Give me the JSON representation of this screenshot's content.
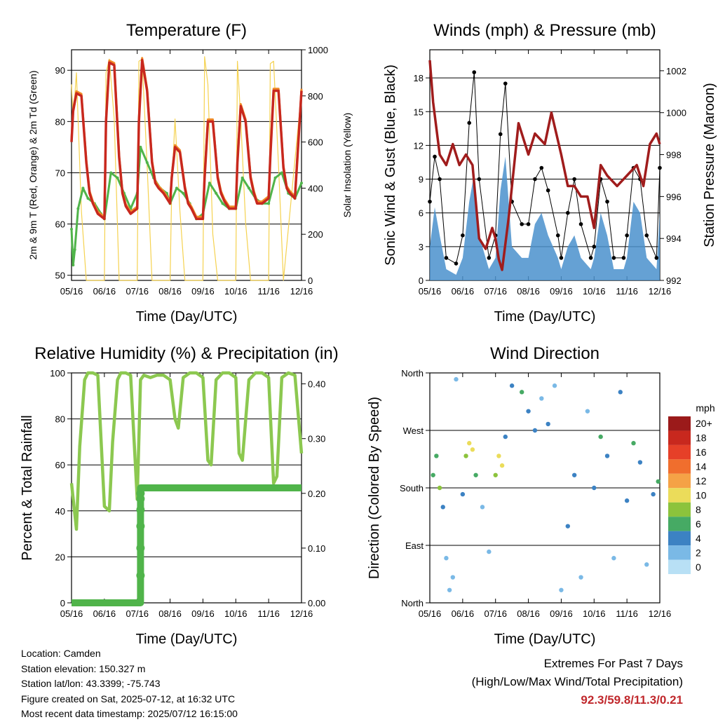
{
  "chart_data": [
    {
      "type": "line",
      "title": "Temperature (F)",
      "xlabel": "Time (Day/UTC)",
      "ylabel": "2m & 9m T (Red, Orange) & 2m Td (Green)",
      "y2label": "Solar Insolation (Yellow)",
      "x_ticks": [
        "05/16",
        "06/16",
        "07/16",
        "08/16",
        "09/16",
        "10/16",
        "11/16",
        "12/16"
      ],
      "ylim": [
        49,
        94
      ],
      "y_ticks": [
        50,
        60,
        70,
        80,
        90
      ],
      "y2lim": [
        0,
        1000
      ],
      "y2_ticks": [
        0,
        200,
        400,
        600,
        800,
        1000
      ],
      "grid": true,
      "colors": {
        "t2m": "#c8281e",
        "t9m": "#f08c28",
        "td": "#50b44a",
        "solar": "#f5d250"
      },
      "series": [
        {
          "key": "t2m",
          "x": [
            0,
            0.05,
            0.15,
            0.3,
            0.45,
            0.55,
            0.65,
            0.8,
            1,
            1.05,
            1.15,
            1.3,
            1.45,
            1.55,
            1.65,
            1.8,
            2,
            2.05,
            2.15,
            2.3,
            2.45,
            2.55,
            2.65,
            2.8,
            3,
            3.05,
            3.15,
            3.3,
            3.45,
            3.55,
            3.65,
            3.8,
            4,
            4.05,
            4.15,
            4.3,
            4.45,
            4.55,
            4.65,
            4.8,
            5,
            5.05,
            5.15,
            5.3,
            5.45,
            5.55,
            5.65,
            5.8,
            6,
            6.05,
            6.15,
            6.3,
            6.45,
            6.55,
            6.65,
            6.8,
            7
          ],
          "y": [
            76,
            82,
            85.5,
            85,
            72,
            66,
            64,
            62,
            61,
            80,
            91.5,
            91,
            73,
            66,
            63.5,
            62,
            63,
            80,
            92,
            86,
            72,
            68,
            67,
            66,
            64,
            69,
            75,
            74,
            67,
            64,
            63,
            61,
            61,
            69,
            80,
            80,
            69,
            66,
            64.5,
            63,
            63,
            72,
            83,
            80,
            69,
            66,
            64,
            64,
            65,
            73,
            86,
            86,
            71,
            67,
            66,
            65,
            86
          ]
        },
        {
          "key": "td",
          "x": [
            0,
            0.05,
            0.1,
            0.2,
            0.35,
            0.5,
            0.7,
            0.9,
            1,
            1.2,
            1.4,
            1.6,
            1.8,
            2,
            2.1,
            2.3,
            2.5,
            2.7,
            2.9,
            3,
            3.2,
            3.4,
            3.6,
            3.8,
            4,
            4.2,
            4.4,
            4.6,
            4.8,
            5,
            5.2,
            5.4,
            5.6,
            5.8,
            6,
            6.2,
            6.4,
            6.6,
            6.8,
            7
          ],
          "y": [
            59,
            52,
            55,
            63,
            67,
            65,
            64,
            62,
            61,
            70,
            69,
            66,
            63,
            66,
            75,
            72,
            69,
            67,
            66,
            64,
            67,
            66,
            64,
            61,
            62,
            68,
            66,
            64,
            63,
            63,
            69,
            67,
            65,
            64,
            64,
            69,
            70,
            66,
            65,
            68
          ]
        },
        {
          "key": "solar",
          "x": [
            0,
            0.05,
            0.15,
            0.3,
            0.45,
            1,
            1.05,
            1.15,
            1.3,
            1.45,
            2,
            2.05,
            2.15,
            2.3,
            2.45,
            3,
            3.05,
            3.15,
            3.3,
            3.45,
            4,
            4.05,
            4.15,
            4.3,
            4.45,
            5,
            5.05,
            5.15,
            5.3,
            5.45,
            6,
            6.05,
            6.15,
            6.3,
            6.45,
            7
          ],
          "y": [
            850,
            700,
            900,
            300,
            0,
            0,
            900,
            960,
            700,
            0,
            0,
            950,
            960,
            500,
            0,
            0,
            400,
            700,
            300,
            0,
            0,
            970,
            850,
            200,
            0,
            0,
            950,
            700,
            250,
            0,
            0,
            940,
            950,
            500,
            0,
            820
          ]
        }
      ]
    },
    {
      "type": "line",
      "title": "Winds (mph) & Pressure (mb)",
      "xlabel": "Time (Day/UTC)",
      "ylabel": "Sonic Wind & Gust (Blue, Black)",
      "y2label": "Station Pressure (Maroon)",
      "x_ticks": [
        "05/16",
        "06/16",
        "07/16",
        "08/16",
        "09/16",
        "10/16",
        "11/16",
        "12/16"
      ],
      "ylim": [
        0,
        20.5
      ],
      "y_ticks": [
        0,
        3,
        6,
        9,
        12,
        15,
        18
      ],
      "y2lim": [
        992,
        1003
      ],
      "y2_ticks": [
        992,
        994,
        996,
        998,
        1000,
        1002
      ],
      "grid": true,
      "colors": {
        "wind": "#4a90cc",
        "gust": "#000000",
        "pressure": "#a01c1c"
      },
      "series": [
        {
          "key": "wind",
          "x": [
            0,
            0.15,
            0.3,
            0.5,
            0.8,
            1,
            1.2,
            1.35,
            1.5,
            1.8,
            2,
            2.15,
            2.3,
            2.5,
            2.8,
            3,
            3.2,
            3.4,
            3.6,
            3.9,
            4,
            4.2,
            4.4,
            4.6,
            4.9,
            5,
            5.2,
            5.4,
            5.6,
            5.9,
            6,
            6.2,
            6.4,
            6.6,
            6.9,
            7
          ],
          "y": [
            3,
            6.5,
            4,
            1,
            0.5,
            2,
            7,
            9.5,
            4,
            1,
            2,
            8,
            11,
            3,
            2,
            2,
            5,
            6,
            4,
            2,
            1,
            3,
            4,
            2,
            1,
            2,
            6,
            4,
            1,
            1,
            2,
            7,
            6,
            2,
            1,
            6
          ]
        },
        {
          "key": "gust",
          "x": [
            0,
            0.15,
            0.3,
            0.5,
            0.8,
            1,
            1.2,
            1.35,
            1.5,
            1.8,
            2,
            2.15,
            2.3,
            2.5,
            2.8,
            3,
            3.2,
            3.4,
            3.6,
            3.9,
            4,
            4.2,
            4.4,
            4.6,
            4.9,
            5,
            5.2,
            5.4,
            5.6,
            5.9,
            6,
            6.2,
            6.4,
            6.6,
            6.9,
            7
          ],
          "y": [
            7,
            11,
            9,
            2,
            1.5,
            4,
            14,
            18.5,
            9,
            2,
            4,
            13,
            17.5,
            7,
            5,
            5,
            9,
            10,
            8,
            4,
            2,
            6,
            9,
            5,
            2,
            3,
            9,
            7,
            2,
            2,
            4,
            10,
            9,
            4,
            2,
            10
          ]
        },
        {
          "key": "pressure",
          "x": [
            0,
            0.1,
            0.3,
            0.5,
            0.7,
            0.9,
            1.1,
            1.3,
            1.5,
            1.7,
            1.9,
            2,
            2.1,
            2.2,
            2.4,
            2.7,
            3,
            3.2,
            3.5,
            3.7,
            4,
            4.2,
            4.4,
            4.6,
            4.8,
            5,
            5.2,
            5.4,
            5.7,
            6,
            6.3,
            6.5,
            6.7,
            6.9,
            7
          ],
          "y": [
            1002.5,
            1000.5,
            998,
            997.5,
            998.5,
            997.5,
            998,
            997.5,
            994,
            993.5,
            994.5,
            994,
            993,
            992.5,
            995,
            999.5,
            998,
            999,
            998.5,
            1000,
            998,
            996.5,
            996.5,
            996,
            996,
            994.5,
            997.5,
            997,
            996.5,
            997,
            997.5,
            996.5,
            998.5,
            999,
            998.5
          ]
        }
      ]
    },
    {
      "type": "line",
      "title": "Relative Humidity (%) & Precipitation (in)",
      "xlabel": "Time (Day/UTC)",
      "ylabel": "Percent & Total Rainfall",
      "x_ticks": [
        "05/16",
        "06/16",
        "07/16",
        "08/16",
        "09/16",
        "10/16",
        "11/16",
        "12/16"
      ],
      "ylim": [
        0,
        100
      ],
      "y_ticks": [
        0,
        20,
        40,
        60,
        80,
        100
      ],
      "y2lim": [
        0,
        0.42
      ],
      "y2_ticks": [
        "0.00",
        "0.10",
        "0.20",
        "0.30",
        "0.40"
      ],
      "grid": true,
      "colors": {
        "rh": "#8cc850",
        "precip": "#50b44a"
      },
      "series": [
        {
          "key": "rh",
          "x": [
            0,
            0.15,
            0.25,
            0.4,
            0.5,
            0.65,
            0.8,
            1,
            1.15,
            1.25,
            1.4,
            1.5,
            1.65,
            1.8,
            2,
            2.1,
            2.2,
            2.4,
            2.6,
            2.8,
            3,
            3.15,
            3.25,
            3.4,
            3.6,
            3.8,
            4,
            4.15,
            4.25,
            4.4,
            4.6,
            4.8,
            5,
            5.1,
            5.2,
            5.4,
            5.6,
            5.8,
            6,
            6.15,
            6.25,
            6.4,
            6.6,
            6.8,
            7
          ],
          "y": [
            52,
            32,
            68,
            97,
            100,
            100,
            99,
            42,
            40,
            70,
            97,
            100,
            100,
            99,
            45,
            97,
            99,
            98,
            99,
            99,
            97,
            80,
            76,
            98,
            100,
            100,
            98,
            62,
            60,
            97,
            100,
            100,
            98,
            65,
            62,
            97,
            100,
            100,
            98,
            52,
            55,
            98,
            100,
            99,
            65
          ]
        },
        {
          "key": "precip",
          "x": [
            0,
            2.1,
            2.1,
            2.15,
            7
          ],
          "y": [
            0,
            0,
            0.21,
            0.21,
            0.21
          ]
        }
      ]
    },
    {
      "type": "scatter",
      "title": "Wind Direction",
      "xlabel": "Time (Day/UTC)",
      "ylabel": "Direction (Colored By Speed)",
      "x_ticks": [
        "05/16",
        "06/16",
        "07/16",
        "08/16",
        "09/16",
        "10/16",
        "11/16",
        "12/16"
      ],
      "y_ticks": [
        "North",
        "East",
        "South",
        "West",
        "North"
      ],
      "grid": true,
      "colorbar_title": "mph",
      "colorbar_labels": [
        "20+",
        "18",
        "16",
        "14",
        "12",
        "10",
        "8",
        "6",
        "4",
        "2",
        "0"
      ],
      "colorbar_colors": [
        "#9b1a1a",
        "#c8281e",
        "#e64028",
        "#f06e2d",
        "#f5a246",
        "#ebdc5a",
        "#8cc33c",
        "#46aa64",
        "#3c82c3",
        "#7ab9e6",
        "#b8e0f5"
      ],
      "points": [
        {
          "x": 0.1,
          "dir": 200,
          "s": 5
        },
        {
          "x": 0.2,
          "dir": 230,
          "s": 6
        },
        {
          "x": 0.3,
          "dir": 180,
          "s": 7
        },
        {
          "x": 0.4,
          "dir": 150,
          "s": 4
        },
        {
          "x": 0.5,
          "dir": 70,
          "s": 1
        },
        {
          "x": 0.6,
          "dir": 20,
          "s": 1
        },
        {
          "x": 0.7,
          "dir": 40,
          "s": 1
        },
        {
          "x": 0.8,
          "dir": 350,
          "s": 1
        },
        {
          "x": 1,
          "dir": 170,
          "s": 3
        },
        {
          "x": 1.1,
          "dir": 230,
          "s": 8
        },
        {
          "x": 1.2,
          "dir": 250,
          "s": 10
        },
        {
          "x": 1.3,
          "dir": 240,
          "s": 9
        },
        {
          "x": 1.4,
          "dir": 200,
          "s": 5
        },
        {
          "x": 1.6,
          "dir": 150,
          "s": 1
        },
        {
          "x": 1.8,
          "dir": 80,
          "s": 1
        },
        {
          "x": 2,
          "dir": 200,
          "s": 7
        },
        {
          "x": 2.1,
          "dir": 230,
          "s": 10
        },
        {
          "x": 2.2,
          "dir": 215,
          "s": 9
        },
        {
          "x": 2.3,
          "dir": 260,
          "s": 3
        },
        {
          "x": 2.5,
          "dir": 340,
          "s": 4
        },
        {
          "x": 2.8,
          "dir": 330,
          "s": 6
        },
        {
          "x": 3,
          "dir": 300,
          "s": 3
        },
        {
          "x": 3.2,
          "dir": 270,
          "s": 3
        },
        {
          "x": 3.4,
          "dir": 320,
          "s": 2
        },
        {
          "x": 3.6,
          "dir": 280,
          "s": 4
        },
        {
          "x": 3.8,
          "dir": 340,
          "s": 2
        },
        {
          "x": 4,
          "dir": 20,
          "s": 1
        },
        {
          "x": 4.2,
          "dir": 120,
          "s": 3
        },
        {
          "x": 4.4,
          "dir": 200,
          "s": 4
        },
        {
          "x": 4.6,
          "dir": 40,
          "s": 1
        },
        {
          "x": 4.8,
          "dir": 300,
          "s": 2
        },
        {
          "x": 5,
          "dir": 180,
          "s": 3
        },
        {
          "x": 5.2,
          "dir": 260,
          "s": 5
        },
        {
          "x": 5.4,
          "dir": 230,
          "s": 4
        },
        {
          "x": 5.6,
          "dir": 70,
          "s": 1
        },
        {
          "x": 5.8,
          "dir": 330,
          "s": 3
        },
        {
          "x": 6,
          "dir": 160,
          "s": 3
        },
        {
          "x": 6.2,
          "dir": 250,
          "s": 6
        },
        {
          "x": 6.4,
          "dir": 220,
          "s": 4
        },
        {
          "x": 6.6,
          "dir": 60,
          "s": 1
        },
        {
          "x": 6.8,
          "dir": 170,
          "s": 4
        },
        {
          "x": 6.95,
          "dir": 190,
          "s": 5
        }
      ]
    }
  ],
  "info": {
    "location": "Location: Camden",
    "elevation": "Station elevation: 150.327 m",
    "latlon": "Station lat/lon: 43.3399; -75.743",
    "created": "Figure created on Sat, 2025-07-12, at 16:32 UTC",
    "timestamp": "Most recent data timestamp: 2025/07/12 16:15:00"
  },
  "extremes": {
    "title": "Extremes For Past 7 Days",
    "subtitle": "(High/Low/Max Wind/Total Precipitation)",
    "values": "92.3/59.8/11.3/0.21",
    "color": "#c0282c"
  }
}
